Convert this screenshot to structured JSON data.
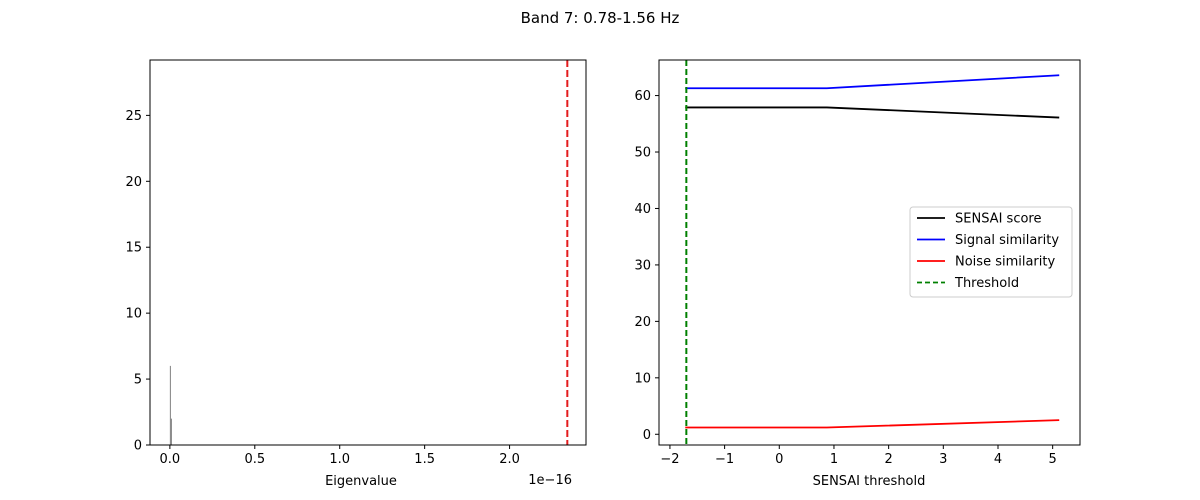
{
  "figure": {
    "title": "Band 7: 0.78-1.56 Hz"
  },
  "chart_data": [
    {
      "type": "bar",
      "name": "eigenvalue-histogram",
      "xlabel": "Eigenvalue",
      "ylabel": "",
      "offset_text": "1e−16",
      "xlim": [
        -0.117,
        2.45
      ],
      "ylim": [
        0,
        29.2
      ],
      "xticks": [
        0.0,
        0.5,
        1.0,
        1.5,
        2.0
      ],
      "xtick_labels": [
        "0.0",
        "0.5",
        "1.0",
        "1.5",
        "2.0"
      ],
      "yticks": [
        0,
        5,
        10,
        15,
        20,
        25
      ],
      "ytick_labels": [
        "0",
        "5",
        "10",
        "15",
        "20",
        "25"
      ],
      "bars": [
        {
          "x": 0.0,
          "height": 6,
          "width": 0.004
        },
        {
          "x": 0.006,
          "height": 2,
          "width": 0.004
        }
      ],
      "bar_color": "#808080",
      "threshold_line": {
        "x": 2.34,
        "color": "#e41a1c"
      }
    },
    {
      "type": "line",
      "name": "threshold-sweep",
      "xlabel": "SENSAI threshold",
      "ylabel": "",
      "xlim": [
        -2.2,
        5.5
      ],
      "ylim": [
        -1.9,
        66.3
      ],
      "xticks": [
        -2,
        -1,
        0,
        1,
        2,
        3,
        4,
        5
      ],
      "xtick_labels": [
        "−2",
        "−1",
        "0",
        "1",
        "2",
        "3",
        "4",
        "5"
      ],
      "yticks": [
        0,
        10,
        20,
        30,
        40,
        50,
        60
      ],
      "ytick_labels": [
        "0",
        "10",
        "20",
        "30",
        "40",
        "50",
        "60"
      ],
      "x": [
        -1.72,
        0.87,
        5.12
      ],
      "series": [
        {
          "name": "SENSAI score",
          "values": [
            57.9,
            57.9,
            56.1
          ],
          "color": "#000000",
          "dash": "solid"
        },
        {
          "name": "Signal similarity",
          "values": [
            61.3,
            61.3,
            63.6
          ],
          "color": "#0000ff",
          "dash": "solid"
        },
        {
          "name": "Noise similarity",
          "values": [
            1.2,
            1.2,
            2.5
          ],
          "color": "#ff0000",
          "dash": "solid"
        }
      ],
      "threshold": {
        "name": "Threshold",
        "x": -1.7,
        "color": "#008000",
        "dash": "dashed"
      },
      "legend": "center-right"
    }
  ]
}
